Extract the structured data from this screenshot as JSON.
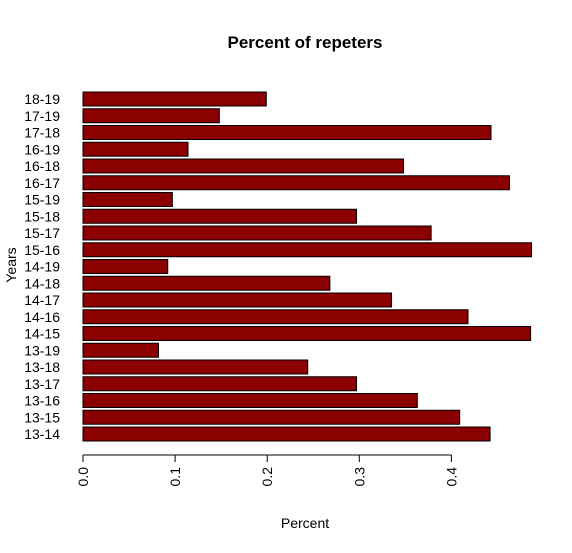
{
  "chart_data": {
    "type": "bar",
    "orientation": "horizontal",
    "title": "Percent of repeters",
    "xlabel": "Percent",
    "ylabel": "Years",
    "xlim": [
      0,
      0.49
    ],
    "xticks": [
      "0.0",
      "0.1",
      "0.2",
      "0.3",
      "0.4"
    ],
    "bar_color": "#8B0000",
    "categories": [
      "13-14",
      "13-15",
      "13-16",
      "13-17",
      "13-18",
      "13-19",
      "14-15",
      "14-16",
      "14-17",
      "14-18",
      "14-19",
      "15-16",
      "15-17",
      "15-18",
      "15-19",
      "16-17",
      "16-18",
      "16-19",
      "17-18",
      "17-19",
      "18-19"
    ],
    "values": [
      0.442,
      0.409,
      0.363,
      0.297,
      0.244,
      0.082,
      0.486,
      0.418,
      0.335,
      0.268,
      0.092,
      0.487,
      0.378,
      0.297,
      0.097,
      0.463,
      0.348,
      0.114,
      0.443,
      0.148,
      0.199
    ],
    "grid": false,
    "legend": "none"
  }
}
